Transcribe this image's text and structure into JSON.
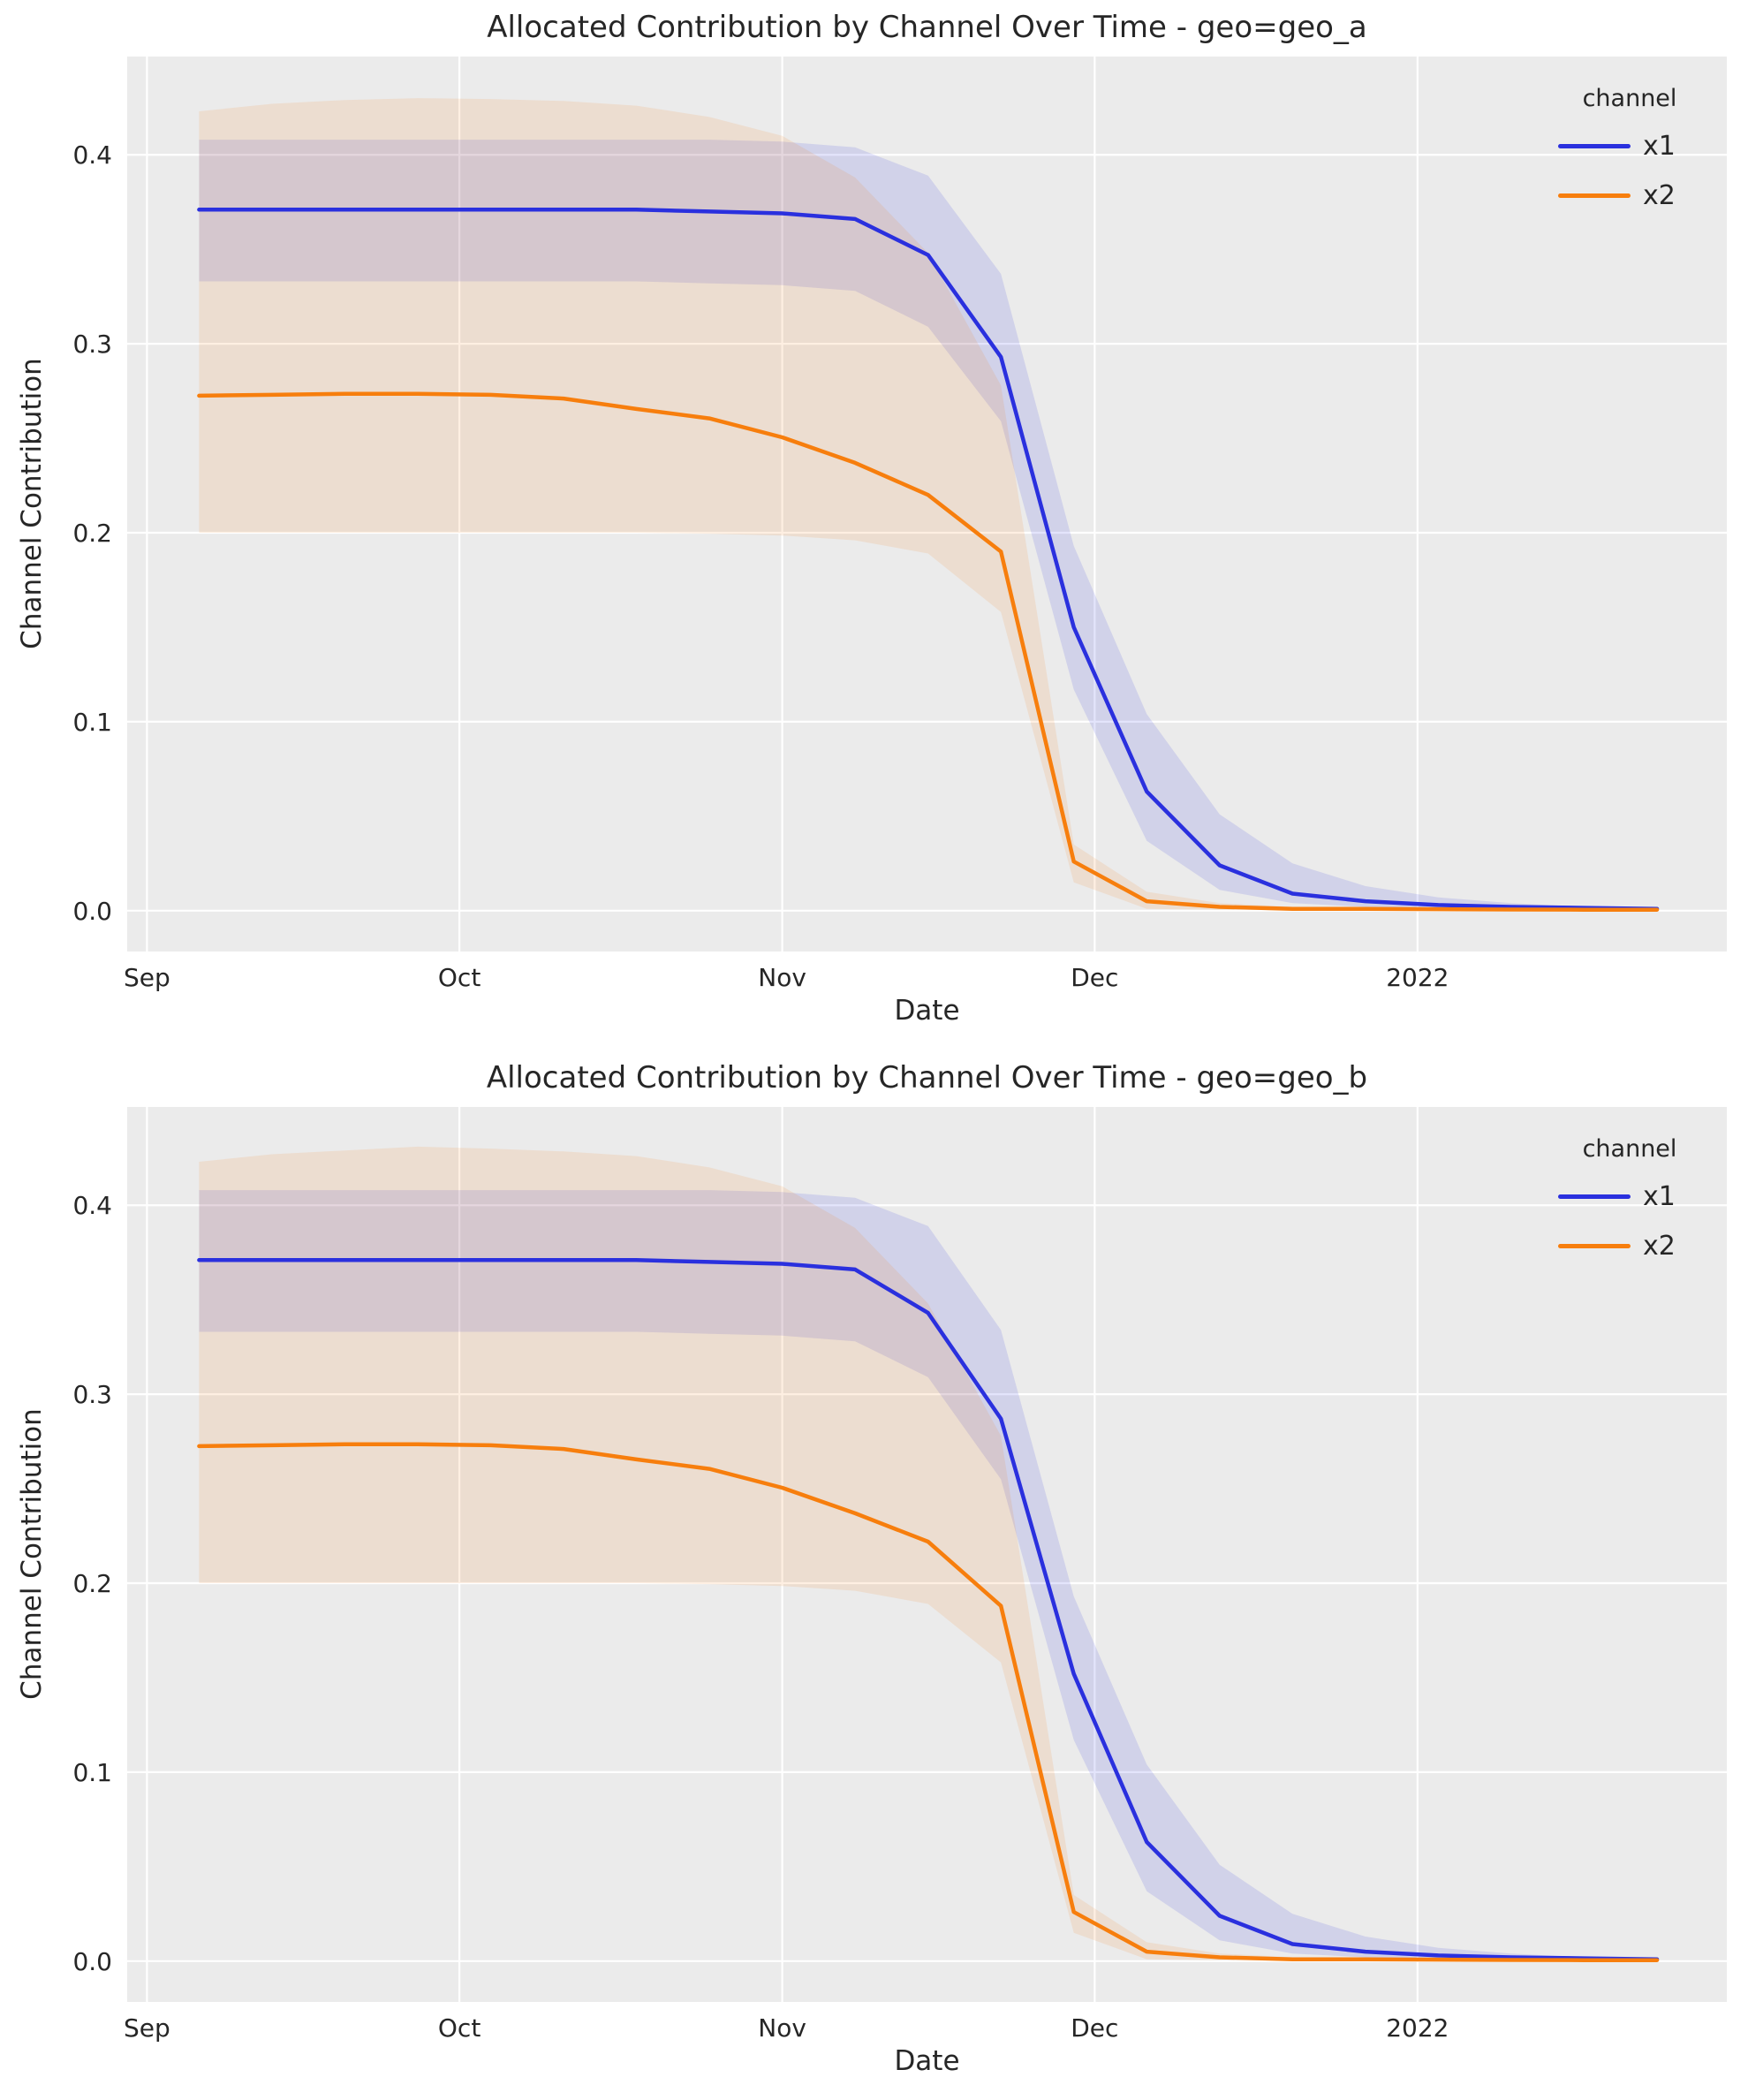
{
  "style": {
    "figure_bg": "#ffffff",
    "axes_bg": "#ebebeb",
    "grid_color": "#ffffff",
    "text_color": "#262626",
    "series_colors": {
      "x1": "#2a30de",
      "x2": "#f77e0d"
    }
  },
  "chart_data": [
    {
      "type": "line",
      "title": "Allocated Contribution by Channel Over Time - geo=geo_a",
      "xlabel": "Date",
      "ylabel": "Channel Contribution",
      "legend_title": "channel",
      "legend_position": "upper right",
      "grid": true,
      "x_ticks": [
        {
          "label": "Sep",
          "day": 0
        },
        {
          "label": "Oct",
          "day": 30
        },
        {
          "label": "Nov",
          "day": 61
        },
        {
          "label": "Dec",
          "day": 91
        },
        {
          "label": "2022",
          "day": 122
        }
      ],
      "y_ticks": [
        {
          "label": "0.0",
          "value": 0.0
        },
        {
          "label": "0.1",
          "value": 0.1
        },
        {
          "label": "0.2",
          "value": 0.2
        },
        {
          "label": "0.3",
          "value": 0.3
        },
        {
          "label": "0.4",
          "value": 0.4
        }
      ],
      "xlim_days": [
        -1.9,
        151.7
      ],
      "ylim": [
        -0.0216,
        0.452
      ],
      "x_days": [
        5,
        12,
        19,
        26,
        33,
        40,
        47,
        54,
        61,
        68,
        75,
        82,
        89,
        96,
        103,
        110,
        117,
        124,
        131,
        138,
        145
      ],
      "series": [
        {
          "name": "x1",
          "color": "#2a30de",
          "band_fill": "rgba(42,48,222,0.13)",
          "values": [
            0.371,
            0.371,
            0.371,
            0.371,
            0.371,
            0.371,
            0.371,
            0.37,
            0.369,
            0.366,
            0.347,
            0.293,
            0.15,
            0.063,
            0.024,
            0.009,
            0.005,
            0.003,
            0.002,
            0.0015,
            0.001
          ],
          "ci_lower": [
            0.333,
            0.333,
            0.333,
            0.333,
            0.333,
            0.333,
            0.333,
            0.332,
            0.331,
            0.328,
            0.309,
            0.259,
            0.117,
            0.037,
            0.011,
            0.004,
            0.002,
            0.001,
            0.0008,
            0.0005,
            0.0004
          ],
          "ci_upper": [
            0.408,
            0.408,
            0.408,
            0.408,
            0.408,
            0.408,
            0.408,
            0.408,
            0.407,
            0.404,
            0.389,
            0.337,
            0.193,
            0.104,
            0.051,
            0.025,
            0.013,
            0.007,
            0.004,
            0.002,
            0.0015
          ]
        },
        {
          "name": "x2",
          "color": "#f77e0d",
          "band_fill": "rgba(247,126,13,0.12)",
          "values": [
            0.2725,
            0.273,
            0.2735,
            0.2735,
            0.273,
            0.271,
            0.2655,
            0.2605,
            0.2505,
            0.237,
            0.22,
            0.19,
            0.026,
            0.005,
            0.002,
            0.001,
            0.001,
            0.0008,
            0.0006,
            0.0005,
            0.0005
          ],
          "ci_lower": [
            0.2,
            0.2,
            0.2,
            0.2,
            0.2,
            0.2,
            0.2,
            0.1995,
            0.1985,
            0.196,
            0.189,
            0.158,
            0.015,
            0.001,
            0.0005,
            0.0003,
            0.0003,
            0.0002,
            0.0002,
            0.0002,
            0.0002
          ],
          "ci_upper": [
            0.423,
            0.427,
            0.429,
            0.43,
            0.4295,
            0.4285,
            0.426,
            0.42,
            0.41,
            0.388,
            0.348,
            0.278,
            0.035,
            0.01,
            0.004,
            0.002,
            0.0015,
            0.001,
            0.001,
            0.001,
            0.001
          ]
        }
      ]
    },
    {
      "type": "line",
      "title": "Allocated Contribution by Channel Over Time - geo=geo_b",
      "xlabel": "Date",
      "ylabel": "Channel Contribution",
      "legend_title": "channel",
      "legend_position": "upper right",
      "grid": true,
      "x_ticks": [
        {
          "label": "Sep",
          "day": 0
        },
        {
          "label": "Oct",
          "day": 30
        },
        {
          "label": "Nov",
          "day": 61
        },
        {
          "label": "Dec",
          "day": 91
        },
        {
          "label": "2022",
          "day": 122
        }
      ],
      "y_ticks": [
        {
          "label": "0.0",
          "value": 0.0
        },
        {
          "label": "0.1",
          "value": 0.1
        },
        {
          "label": "0.2",
          "value": 0.2
        },
        {
          "label": "0.3",
          "value": 0.3
        },
        {
          "label": "0.4",
          "value": 0.4
        }
      ],
      "xlim_days": [
        -1.9,
        151.7
      ],
      "ylim": [
        -0.0216,
        0.452
      ],
      "x_days": [
        5,
        12,
        19,
        26,
        33,
        40,
        47,
        54,
        61,
        68,
        75,
        82,
        89,
        96,
        103,
        110,
        117,
        124,
        131,
        138,
        145
      ],
      "series": [
        {
          "name": "x1",
          "color": "#2a30de",
          "band_fill": "rgba(42,48,222,0.13)",
          "values": [
            0.371,
            0.371,
            0.371,
            0.371,
            0.371,
            0.371,
            0.371,
            0.37,
            0.369,
            0.366,
            0.343,
            0.287,
            0.152,
            0.063,
            0.024,
            0.009,
            0.005,
            0.003,
            0.002,
            0.0015,
            0.001
          ],
          "ci_lower": [
            0.333,
            0.333,
            0.333,
            0.333,
            0.333,
            0.333,
            0.333,
            0.332,
            0.331,
            0.328,
            0.309,
            0.255,
            0.117,
            0.037,
            0.011,
            0.004,
            0.002,
            0.001,
            0.0008,
            0.0005,
            0.0004
          ],
          "ci_upper": [
            0.408,
            0.408,
            0.408,
            0.408,
            0.408,
            0.408,
            0.408,
            0.408,
            0.407,
            0.404,
            0.389,
            0.334,
            0.193,
            0.104,
            0.051,
            0.025,
            0.013,
            0.007,
            0.004,
            0.002,
            0.0015
          ]
        },
        {
          "name": "x2",
          "color": "#f77e0d",
          "band_fill": "rgba(247,126,13,0.12)",
          "values": [
            0.2725,
            0.273,
            0.2735,
            0.2735,
            0.273,
            0.271,
            0.2655,
            0.2605,
            0.2505,
            0.237,
            0.222,
            0.188,
            0.026,
            0.005,
            0.002,
            0.001,
            0.001,
            0.0008,
            0.0006,
            0.0005,
            0.0005
          ],
          "ci_lower": [
            0.2,
            0.2,
            0.2,
            0.2,
            0.2,
            0.2,
            0.2,
            0.1995,
            0.1985,
            0.196,
            0.189,
            0.158,
            0.015,
            0.001,
            0.0005,
            0.0003,
            0.0003,
            0.0002,
            0.0002,
            0.0002,
            0.0002
          ],
          "ci_upper": [
            0.423,
            0.427,
            0.429,
            0.431,
            0.43,
            0.4285,
            0.426,
            0.42,
            0.41,
            0.388,
            0.348,
            0.278,
            0.035,
            0.01,
            0.004,
            0.002,
            0.0015,
            0.001,
            0.001,
            0.001,
            0.001
          ]
        }
      ]
    }
  ]
}
